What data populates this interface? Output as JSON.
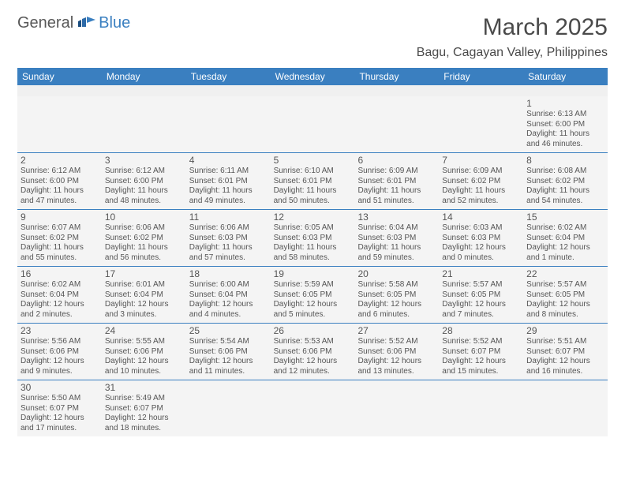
{
  "logo": {
    "text1": "General",
    "text2": "Blue"
  },
  "title": "March 2025",
  "location": "Bagu, Cagayan Valley, Philippines",
  "colors": {
    "header_bg": "#3a7fc0",
    "header_fg": "#ffffff",
    "text": "#555555",
    "rule": "#3a7fc0",
    "cell_bg": "#f4f4f4"
  },
  "weekdays": [
    "Sunday",
    "Monday",
    "Tuesday",
    "Wednesday",
    "Thursday",
    "Friday",
    "Saturday"
  ],
  "weeks": [
    [
      null,
      null,
      null,
      null,
      null,
      null,
      {
        "n": "1",
        "sr": "Sunrise: 6:13 AM",
        "ss": "Sunset: 6:00 PM",
        "dl1": "Daylight: 11 hours",
        "dl2": "and 46 minutes."
      }
    ],
    [
      {
        "n": "2",
        "sr": "Sunrise: 6:12 AM",
        "ss": "Sunset: 6:00 PM",
        "dl1": "Daylight: 11 hours",
        "dl2": "and 47 minutes."
      },
      {
        "n": "3",
        "sr": "Sunrise: 6:12 AM",
        "ss": "Sunset: 6:00 PM",
        "dl1": "Daylight: 11 hours",
        "dl2": "and 48 minutes."
      },
      {
        "n": "4",
        "sr": "Sunrise: 6:11 AM",
        "ss": "Sunset: 6:01 PM",
        "dl1": "Daylight: 11 hours",
        "dl2": "and 49 minutes."
      },
      {
        "n": "5",
        "sr": "Sunrise: 6:10 AM",
        "ss": "Sunset: 6:01 PM",
        "dl1": "Daylight: 11 hours",
        "dl2": "and 50 minutes."
      },
      {
        "n": "6",
        "sr": "Sunrise: 6:09 AM",
        "ss": "Sunset: 6:01 PM",
        "dl1": "Daylight: 11 hours",
        "dl2": "and 51 minutes."
      },
      {
        "n": "7",
        "sr": "Sunrise: 6:09 AM",
        "ss": "Sunset: 6:02 PM",
        "dl1": "Daylight: 11 hours",
        "dl2": "and 52 minutes."
      },
      {
        "n": "8",
        "sr": "Sunrise: 6:08 AM",
        "ss": "Sunset: 6:02 PM",
        "dl1": "Daylight: 11 hours",
        "dl2": "and 54 minutes."
      }
    ],
    [
      {
        "n": "9",
        "sr": "Sunrise: 6:07 AM",
        "ss": "Sunset: 6:02 PM",
        "dl1": "Daylight: 11 hours",
        "dl2": "and 55 minutes."
      },
      {
        "n": "10",
        "sr": "Sunrise: 6:06 AM",
        "ss": "Sunset: 6:02 PM",
        "dl1": "Daylight: 11 hours",
        "dl2": "and 56 minutes."
      },
      {
        "n": "11",
        "sr": "Sunrise: 6:06 AM",
        "ss": "Sunset: 6:03 PM",
        "dl1": "Daylight: 11 hours",
        "dl2": "and 57 minutes."
      },
      {
        "n": "12",
        "sr": "Sunrise: 6:05 AM",
        "ss": "Sunset: 6:03 PM",
        "dl1": "Daylight: 11 hours",
        "dl2": "and 58 minutes."
      },
      {
        "n": "13",
        "sr": "Sunrise: 6:04 AM",
        "ss": "Sunset: 6:03 PM",
        "dl1": "Daylight: 11 hours",
        "dl2": "and 59 minutes."
      },
      {
        "n": "14",
        "sr": "Sunrise: 6:03 AM",
        "ss": "Sunset: 6:03 PM",
        "dl1": "Daylight: 12 hours",
        "dl2": "and 0 minutes."
      },
      {
        "n": "15",
        "sr": "Sunrise: 6:02 AM",
        "ss": "Sunset: 6:04 PM",
        "dl1": "Daylight: 12 hours",
        "dl2": "and 1 minute."
      }
    ],
    [
      {
        "n": "16",
        "sr": "Sunrise: 6:02 AM",
        "ss": "Sunset: 6:04 PM",
        "dl1": "Daylight: 12 hours",
        "dl2": "and 2 minutes."
      },
      {
        "n": "17",
        "sr": "Sunrise: 6:01 AM",
        "ss": "Sunset: 6:04 PM",
        "dl1": "Daylight: 12 hours",
        "dl2": "and 3 minutes."
      },
      {
        "n": "18",
        "sr": "Sunrise: 6:00 AM",
        "ss": "Sunset: 6:04 PM",
        "dl1": "Daylight: 12 hours",
        "dl2": "and 4 minutes."
      },
      {
        "n": "19",
        "sr": "Sunrise: 5:59 AM",
        "ss": "Sunset: 6:05 PM",
        "dl1": "Daylight: 12 hours",
        "dl2": "and 5 minutes."
      },
      {
        "n": "20",
        "sr": "Sunrise: 5:58 AM",
        "ss": "Sunset: 6:05 PM",
        "dl1": "Daylight: 12 hours",
        "dl2": "and 6 minutes."
      },
      {
        "n": "21",
        "sr": "Sunrise: 5:57 AM",
        "ss": "Sunset: 6:05 PM",
        "dl1": "Daylight: 12 hours",
        "dl2": "and 7 minutes."
      },
      {
        "n": "22",
        "sr": "Sunrise: 5:57 AM",
        "ss": "Sunset: 6:05 PM",
        "dl1": "Daylight: 12 hours",
        "dl2": "and 8 minutes."
      }
    ],
    [
      {
        "n": "23",
        "sr": "Sunrise: 5:56 AM",
        "ss": "Sunset: 6:06 PM",
        "dl1": "Daylight: 12 hours",
        "dl2": "and 9 minutes."
      },
      {
        "n": "24",
        "sr": "Sunrise: 5:55 AM",
        "ss": "Sunset: 6:06 PM",
        "dl1": "Daylight: 12 hours",
        "dl2": "and 10 minutes."
      },
      {
        "n": "25",
        "sr": "Sunrise: 5:54 AM",
        "ss": "Sunset: 6:06 PM",
        "dl1": "Daylight: 12 hours",
        "dl2": "and 11 minutes."
      },
      {
        "n": "26",
        "sr": "Sunrise: 5:53 AM",
        "ss": "Sunset: 6:06 PM",
        "dl1": "Daylight: 12 hours",
        "dl2": "and 12 minutes."
      },
      {
        "n": "27",
        "sr": "Sunrise: 5:52 AM",
        "ss": "Sunset: 6:06 PM",
        "dl1": "Daylight: 12 hours",
        "dl2": "and 13 minutes."
      },
      {
        "n": "28",
        "sr": "Sunrise: 5:52 AM",
        "ss": "Sunset: 6:07 PM",
        "dl1": "Daylight: 12 hours",
        "dl2": "and 15 minutes."
      },
      {
        "n": "29",
        "sr": "Sunrise: 5:51 AM",
        "ss": "Sunset: 6:07 PM",
        "dl1": "Daylight: 12 hours",
        "dl2": "and 16 minutes."
      }
    ],
    [
      {
        "n": "30",
        "sr": "Sunrise: 5:50 AM",
        "ss": "Sunset: 6:07 PM",
        "dl1": "Daylight: 12 hours",
        "dl2": "and 17 minutes."
      },
      {
        "n": "31",
        "sr": "Sunrise: 5:49 AM",
        "ss": "Sunset: 6:07 PM",
        "dl1": "Daylight: 12 hours",
        "dl2": "and 18 minutes."
      },
      null,
      null,
      null,
      null,
      null
    ]
  ]
}
